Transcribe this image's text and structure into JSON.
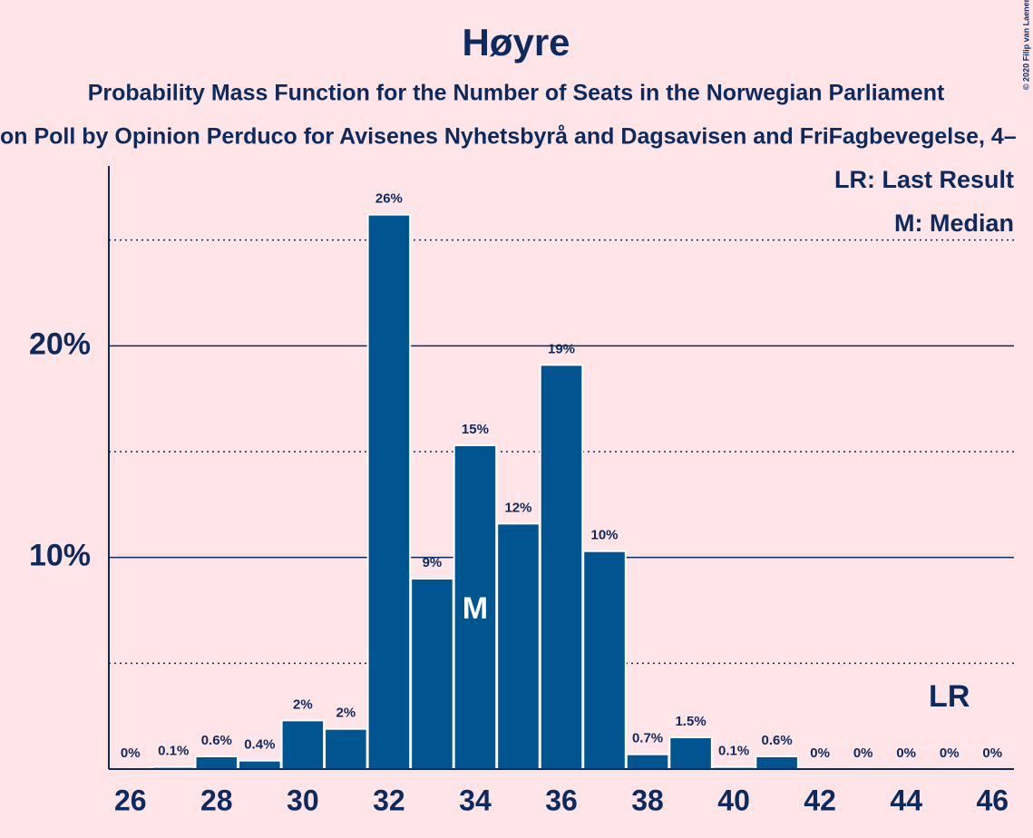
{
  "chart_data": {
    "type": "bar",
    "title": "Høyre",
    "subtitle": "Probability Mass Function for the Number of Seats in the Norwegian Parliament",
    "subtitle2": "on Poll by Opinion Perduco for Avisenes Nyhetsbyrå and Dagsavisen and FriFagbevegelse, 4–",
    "copyright": "© 2020 Filip van Laenen",
    "legend": [
      "LR: Last Result",
      "M: Median"
    ],
    "x": [
      26,
      27,
      28,
      29,
      30,
      31,
      32,
      33,
      34,
      35,
      36,
      37,
      38,
      39,
      40,
      41,
      42,
      43,
      44,
      45,
      46
    ],
    "values": [
      0,
      0.1,
      0.6,
      0.4,
      2.3,
      1.9,
      26.2,
      9.0,
      15.3,
      11.6,
      19.1,
      10.3,
      0.7,
      1.5,
      0.1,
      0.6,
      0,
      0,
      0,
      0,
      0
    ],
    "value_labels": [
      "0%",
      "0.1%",
      "0.6%",
      "0.4%",
      "2%",
      "2%",
      "26%",
      "9%",
      "15%",
      "12%",
      "19%",
      "10%",
      "0.7%",
      "1.5%",
      "0.1%",
      "0.6%",
      "0%",
      "0%",
      "0%",
      "0%",
      "0%"
    ],
    "color": "#00548f",
    "xlim": [
      25.5,
      46.5
    ],
    "xticks": [
      26,
      28,
      30,
      32,
      34,
      36,
      38,
      40,
      42,
      44,
      46
    ],
    "ylim": [
      0,
      28.5
    ],
    "yticks": [
      {
        "value": 10,
        "label": "10%"
      },
      {
        "value": 20,
        "label": "20%"
      }
    ],
    "minor_yticks": [
      5,
      15,
      25
    ],
    "grid": true,
    "annotations": [
      {
        "text": "M",
        "x": 34
      },
      {
        "text": "LR",
        "x": 45
      }
    ]
  }
}
